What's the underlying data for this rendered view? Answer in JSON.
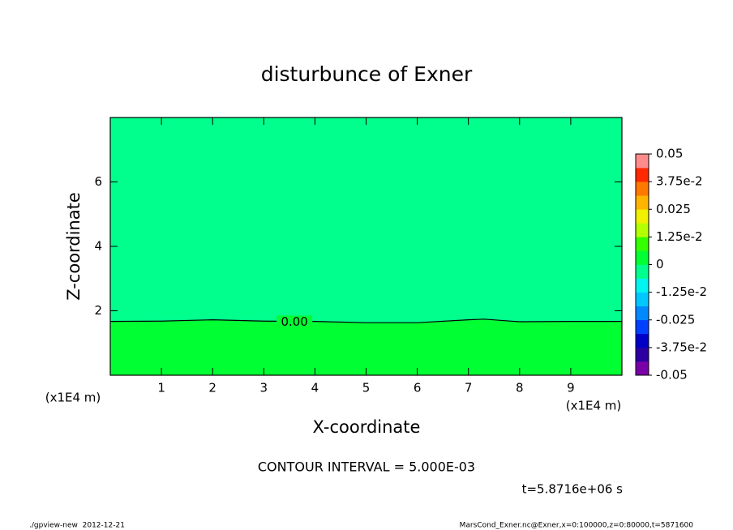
{
  "chart_data": {
    "type": "contour",
    "title": "disturbunce of Exner",
    "x_label": "X-coordinate",
    "y_label": "Z-coordinate",
    "x_unit": "(x1E4 m)",
    "y_unit": "(x1E4 m)",
    "xlim": [
      0,
      10
    ],
    "ylim": [
      0,
      8
    ],
    "xticks": [
      1,
      2,
      3,
      4,
      5,
      6,
      7,
      8,
      9
    ],
    "yticks": [
      2,
      4,
      6
    ],
    "contours": [
      {
        "level": 0,
        "label": "0.00",
        "label_x": 3.6,
        "x": [
          0,
          1,
          2,
          3,
          4,
          5,
          6,
          7,
          7.3,
          8,
          9,
          10
        ],
        "y": [
          1.67,
          1.68,
          1.72,
          1.68,
          1.67,
          1.63,
          1.63,
          1.72,
          1.74,
          1.66,
          1.67,
          1.67
        ]
      }
    ],
    "colorbar": {
      "lim": [
        -0.05,
        0.05
      ],
      "colors": [
        "#7a00a8",
        "#2c00a0",
        "#0000c8",
        "#0040ff",
        "#0088ff",
        "#00c8ff",
        "#00f5f0",
        "#00ff8c",
        "#00ff33",
        "#33ff00",
        "#b4ff00",
        "#f0f000",
        "#ffb400",
        "#ff7800",
        "#ff2800",
        "#ff8c8c"
      ],
      "ticks": [
        -0.05,
        {
          "value": -0.0375,
          "label": "-3.75e-2"
        },
        -0.025,
        {
          "value": -0.0125,
          "label": "-1.25e-2"
        },
        0,
        {
          "value": 0.0125,
          "label": "1.25e-2"
        },
        0.025,
        {
          "value": 0.0375,
          "label": "3.75e-2"
        },
        0.05
      ]
    },
    "contour_interval": "CONTOUR INTERVAL = 5.000E-03",
    "time": "t=5.8716e+06 s",
    "footer_left": "./gpview-new  2012-12-21",
    "footer_right": "MarsCond_Exner.nc@Exner,x=0:100000,z=0:80000,t=5871600"
  }
}
